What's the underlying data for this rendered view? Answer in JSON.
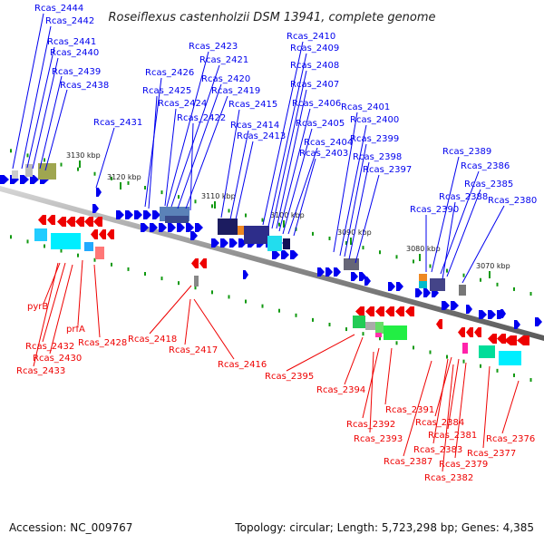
{
  "title": "Roseiflexus castenholzii DSM 13941, complete genome",
  "footer": {
    "accession": "Accession: NC_009767",
    "summary": "Topology: circular; Length: 5,723,298 bp; Genes: 4,385"
  },
  "colors": {
    "forward": "#0000ee",
    "reverse": "#ee0000",
    "backbone": "#888888",
    "tick": "#119911"
  },
  "kbp_ticks": [
    "3130 kbp",
    "3120 kbp",
    "3110 kbp",
    "3100 kbp",
    "3090 kbp",
    "3080 kbp",
    "3070 kbp"
  ],
  "forward_labels": [
    "Rcas_2444",
    "Rcas_2442",
    "Rcas_2441",
    "Rcas_2440",
    "Rcas_2439",
    "Rcas_2438",
    "Rcas_2431",
    "Rcas_2426",
    "Rcas_2425",
    "Rcas_2424",
    "Rcas_2423",
    "Rcas_2421",
    "Rcas_2420",
    "Rcas_2419",
    "Rcas_2422",
    "Rcas_2415",
    "Rcas_2414",
    "Rcas_2413",
    "Rcas_2410",
    "Rcas_2409",
    "Rcas_2408",
    "Rcas_2407",
    "Rcas_2406",
    "Rcas_2405",
    "Rcas_2404",
    "Rcas_2403",
    "Rcas_2401",
    "Rcas_2400",
    "Rcas_2399",
    "Rcas_2398",
    "Rcas_2397",
    "Rcas_2389",
    "Rcas_2386",
    "Rcas_2385",
    "Rcas_2388",
    "Rcas_2390",
    "Rcas_2380"
  ],
  "reverse_labels": [
    "pyrB",
    "prfA",
    "Rcas_2432",
    "Rcas_2430",
    "Rcas_2433",
    "Rcas_2428",
    "Rcas_2418",
    "Rcas_2417",
    "Rcas_2416",
    "Rcas_2395",
    "Rcas_2394",
    "Rcas_2391",
    "Rcas_2392",
    "Rcas_2393",
    "Rcas_2384",
    "Rcas_2381",
    "Rcas_2383",
    "Rcas_2387",
    "Rcas_2379",
    "Rcas_2382",
    "Rcas_2377",
    "Rcas_2376"
  ]
}
